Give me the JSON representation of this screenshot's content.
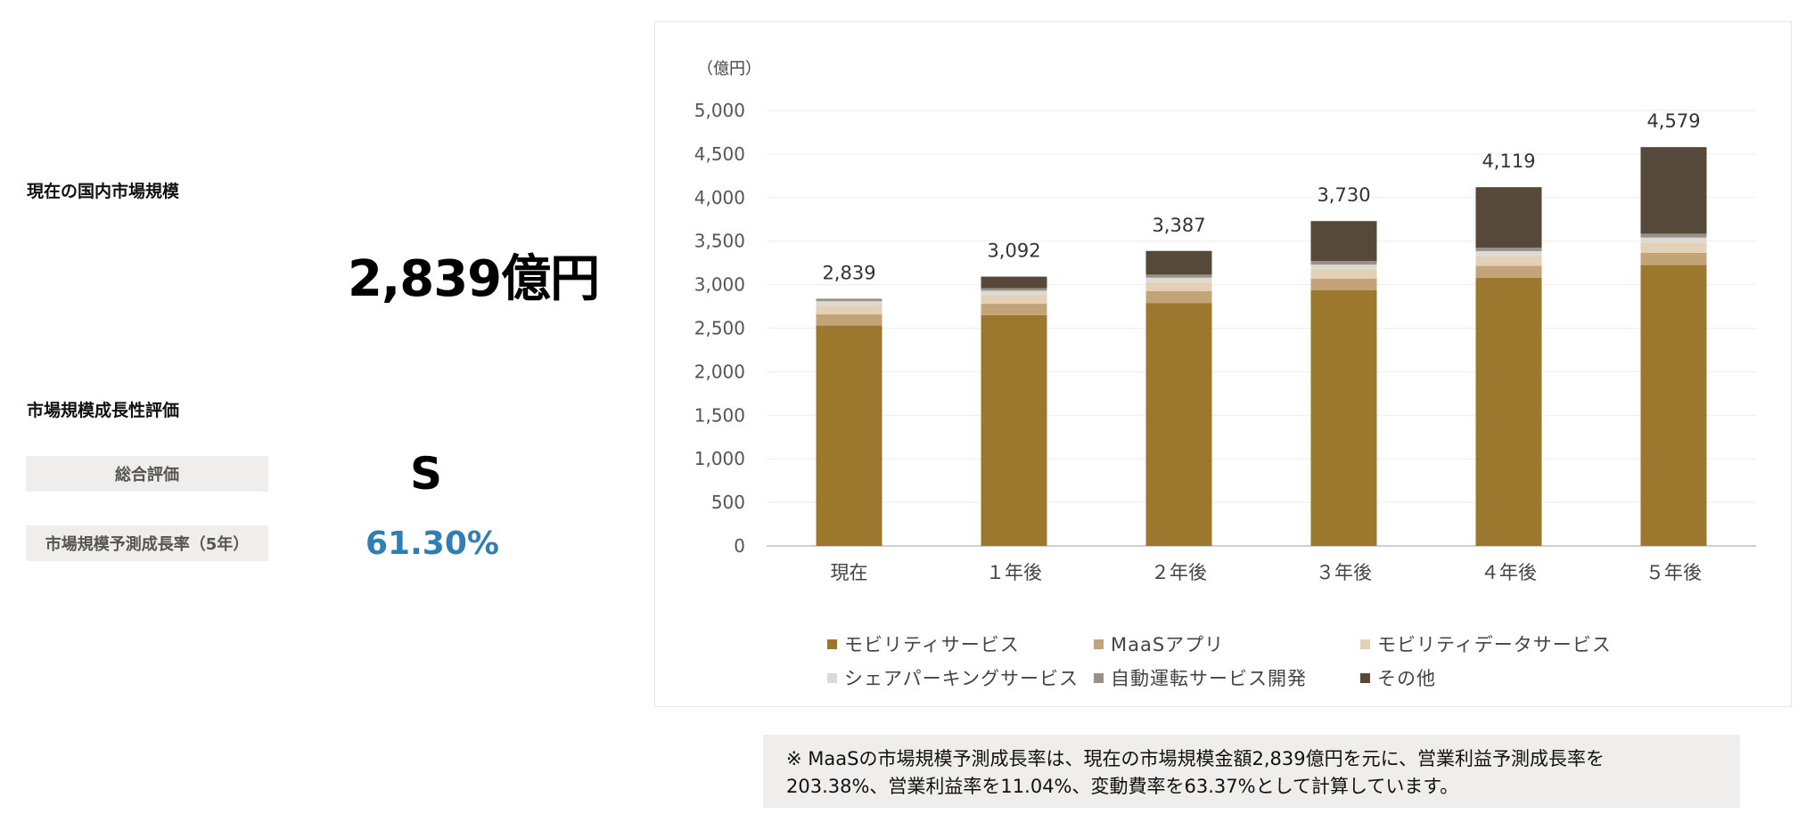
{
  "left": {
    "current_size_label": "現在の国内市場規模",
    "current_size_value": "2,839億円",
    "growth_label": "市場規模成長性評価",
    "overall_label": "総合評価",
    "overall_value": "S",
    "rate_label": "市場規模予測成長率（5年）",
    "rate_value": "61.30%"
  },
  "note": {
    "line1": "※ MaaSの市場規模予測成長率は、現在の市場規模金額2,839億円を元に、営業利益予測成長率を",
    "line2": "203.38%、営業利益率を11.04%、変動費率を63.37%として計算しています。"
  },
  "chart_data": {
    "type": "bar",
    "stacked": true,
    "unit_label": "（億円）",
    "categories": [
      "現在",
      "１年後",
      "２年後",
      "３年後",
      "４年後",
      "５年後"
    ],
    "ylim": [
      0,
      5000
    ],
    "yticks": [
      0,
      500,
      1000,
      1500,
      2000,
      2500,
      3000,
      3500,
      4000,
      4500,
      5000
    ],
    "ytick_labels": [
      "0",
      "500",
      "1,000",
      "1,500",
      "2,000",
      "2,500",
      "3,000",
      "3,500",
      "4,000",
      "4,500",
      "5,000"
    ],
    "grid": true,
    "legend_position": "bottom",
    "totals": [
      "2,839",
      "3,092",
      "3,387",
      "3,730",
      "4,119",
      "4,579"
    ],
    "series": [
      {
        "name": "モビリティサービス",
        "color": "#9b782e",
        "values": [
          2530,
          2650,
          2790,
          2935,
          3080,
          3225
        ]
      },
      {
        "name": "MaaSアプリ",
        "color": "#c3a478",
        "values": [
          130,
          130,
          135,
          135,
          135,
          140
        ]
      },
      {
        "name": "モビリティデータサービス",
        "color": "#e3d0b5",
        "values": [
          100,
          100,
          100,
          105,
          110,
          115
        ]
      },
      {
        "name": "シェアパーキングサービス",
        "color": "#dcdad5",
        "values": [
          50,
          50,
          55,
          55,
          60,
          60
        ]
      },
      {
        "name": "自動運転サービス開発",
        "color": "#999188",
        "values": [
          29,
          30,
          35,
          40,
          40,
          45
        ]
      },
      {
        "name": "その他",
        "color": "#564939",
        "values": [
          0,
          132,
          272,
          460,
          694,
          994
        ]
      }
    ]
  }
}
